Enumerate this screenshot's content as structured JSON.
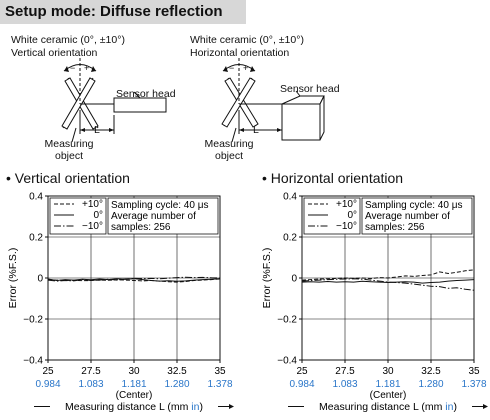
{
  "header": {
    "title": "Setup mode: Diffuse reflection"
  },
  "diagrams": [
    {
      "material": "White ceramic (0°, ±10°)",
      "orientation": "Vertical orientation",
      "sensor_label": "Sensor head",
      "distance_label": "L",
      "object_label": "Measuring object",
      "plus_sign": "+",
      "minus_sign": "−"
    },
    {
      "material": "White ceramic (0°, ±10°)",
      "orientation": "Horizontal orientation",
      "sensor_label": "Sensor head",
      "distance_label": "L",
      "object_label": "Measuring object",
      "plus_sign": "+",
      "minus_sign": "−"
    }
  ],
  "colors": {
    "header_bg": "#d7d7d7",
    "inch_labels": "#2a76c9",
    "line": "#111111"
  },
  "chart_data": [
    {
      "type": "line",
      "title": "• Vertical orientation",
      "xlabel": "Measuring distance L (mm in)",
      "xlabel_parts": [
        "Measuring distance L (mm ",
        "in",
        ")"
      ],
      "ylabel": "Error (%F.S.)",
      "xlim": [
        25,
        35
      ],
      "ylim": [
        -0.4,
        0.4
      ],
      "x_ticks": [
        "25",
        "27.5",
        "30",
        "32.5",
        "35"
      ],
      "x_ticks_in": [
        "0.984",
        "1.083",
        "1.181",
        "1.280",
        "1.378"
      ],
      "x_center_label": "(Center)",
      "y_ticks": [
        "0.4",
        "0.2",
        "0",
        "−0.2",
        "−0.4"
      ],
      "legend": [
        "+10°",
        "0°",
        "−10°"
      ],
      "info": [
        "Sampling cycle: 40 μs",
        "Average number of",
        "samples: 256"
      ],
      "series": [
        {
          "name": "+10°",
          "style": "dashed",
          "x": [
            25,
            25.5,
            26,
            26.5,
            27,
            27.5,
            28,
            28.5,
            29,
            29.5,
            30,
            30.5,
            31,
            31.5,
            32,
            32.5,
            33,
            33.5,
            34,
            34.5,
            35
          ],
          "y": [
            -0.008,
            -0.01,
            -0.012,
            -0.011,
            -0.013,
            -0.012,
            -0.01,
            -0.011,
            -0.009,
            -0.01,
            -0.012,
            -0.014,
            -0.012,
            -0.015,
            -0.018,
            -0.02,
            -0.017,
            -0.012,
            -0.01,
            -0.008,
            -0.005
          ]
        },
        {
          "name": "0°",
          "style": "solid",
          "x": [
            25,
            25.5,
            26,
            26.5,
            27,
            27.5,
            28,
            28.5,
            29,
            29.5,
            30,
            30.5,
            31,
            31.5,
            32,
            32.5,
            33,
            33.5,
            34,
            34.5,
            35
          ],
          "y": [
            -0.005,
            -0.012,
            -0.008,
            -0.01,
            -0.006,
            -0.009,
            -0.005,
            -0.008,
            -0.004,
            -0.007,
            -0.003,
            -0.008,
            -0.012,
            -0.015,
            -0.013,
            -0.016,
            -0.014,
            -0.01,
            -0.008,
            -0.006,
            -0.004
          ]
        },
        {
          "name": "−10°",
          "style": "dashdot",
          "x": [
            25,
            25.5,
            26,
            26.5,
            27,
            27.5,
            28,
            28.5,
            29,
            29.5,
            30,
            30.5,
            31,
            31.5,
            32,
            32.5,
            33,
            33.5,
            34,
            34.5,
            35
          ],
          "y": [
            -0.01,
            -0.015,
            -0.012,
            -0.014,
            -0.008,
            -0.012,
            -0.01,
            -0.006,
            -0.01,
            -0.005,
            -0.002,
            -0.003,
            -0.002,
            -0.004,
            -0.001,
            0.002,
            0.004,
            0.002,
            0.003,
            0.001,
            0.0
          ]
        }
      ]
    },
    {
      "type": "line",
      "title": "• Horizontal orientation",
      "xlabel": "Measuring distance L (mm in)",
      "xlabel_parts": [
        "Measuring distance L (mm ",
        "in",
        ")"
      ],
      "ylabel": "Error (%F.S.)",
      "xlim": [
        25,
        35
      ],
      "ylim": [
        -0.4,
        0.4
      ],
      "x_ticks": [
        "25",
        "27.5",
        "30",
        "32.5",
        "35"
      ],
      "x_ticks_in": [
        "0.984",
        "1.083",
        "1.181",
        "1.280",
        "1.378"
      ],
      "x_center_label": "(Center)",
      "y_ticks": [
        "0.4",
        "0.2",
        "0",
        "−0.2",
        "−0.4"
      ],
      "legend": [
        "+10°",
        "0°",
        "−10°"
      ],
      "info": [
        "Sampling cycle: 40 μs",
        "Average number of",
        "samples: 256"
      ],
      "series": [
        {
          "name": "+10°",
          "style": "dashed",
          "x": [
            25,
            25.5,
            26,
            26.5,
            27,
            27.5,
            28,
            28.5,
            29,
            29.5,
            30,
            30.5,
            31,
            31.5,
            32,
            32.5,
            33,
            33.5,
            34,
            34.5,
            35
          ],
          "y": [
            -0.01,
            -0.008,
            -0.005,
            -0.004,
            -0.002,
            0.0,
            -0.002,
            0.0,
            -0.003,
            0.002,
            0.0,
            0.005,
            0.01,
            0.008,
            0.012,
            0.015,
            0.03,
            0.022,
            0.028,
            0.035,
            0.04
          ]
        },
        {
          "name": "0°",
          "style": "solid",
          "x": [
            25,
            25.5,
            26,
            26.5,
            27,
            27.5,
            28,
            28.5,
            29,
            29.5,
            30,
            30.5,
            31,
            31.5,
            32,
            32.5,
            33,
            33.5,
            34,
            34.5,
            35
          ],
          "y": [
            -0.02,
            -0.018,
            -0.02,
            -0.017,
            -0.02,
            -0.018,
            -0.02,
            -0.016,
            -0.018,
            -0.02,
            -0.022,
            -0.02,
            -0.018,
            -0.02,
            -0.025,
            -0.022,
            -0.02,
            -0.015,
            -0.012,
            -0.01,
            -0.008
          ]
        },
        {
          "name": "−10°",
          "style": "dashdot",
          "x": [
            25,
            25.5,
            26,
            26.5,
            27,
            27.5,
            28,
            28.5,
            29,
            29.5,
            30,
            30.5,
            31,
            31.5,
            32,
            32.5,
            33,
            33.5,
            34,
            34.5,
            35
          ],
          "y": [
            -0.015,
            -0.012,
            -0.01,
            -0.008,
            -0.006,
            -0.005,
            -0.004,
            -0.006,
            -0.01,
            -0.015,
            -0.02,
            -0.022,
            -0.025,
            -0.03,
            -0.035,
            -0.04,
            -0.042,
            -0.05,
            -0.048,
            -0.055,
            -0.06
          ]
        }
      ]
    }
  ]
}
